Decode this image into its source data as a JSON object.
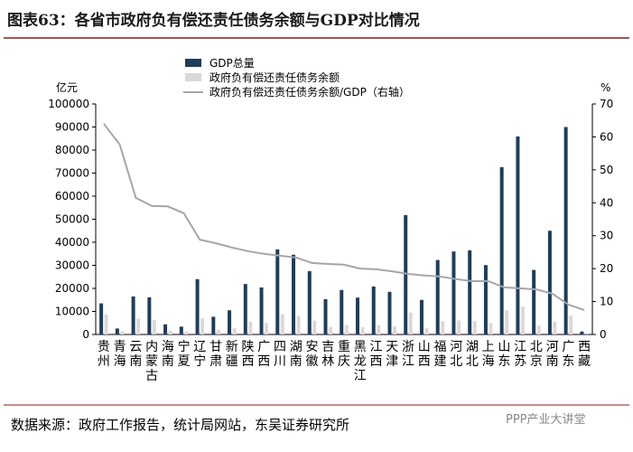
{
  "chart_data": {
    "type": "bar_line",
    "title": "图表63：各省市政府负有偿还责任债务余额与GDP对比情况",
    "y_label": "亿元",
    "y2_label": "%",
    "categories": [
      "贵州",
      "青海",
      "云南",
      "内蒙古",
      "海南",
      "宁夏",
      "辽宁",
      "甘肃",
      "新疆",
      "陕西",
      "广西",
      "四川",
      "湖南",
      "安徽",
      "吉林",
      "重庆",
      "黑龙江",
      "江西",
      "天津",
      "浙江",
      "山西",
      "福建",
      "河北",
      "湖北",
      "上海",
      "山东",
      "江苏",
      "北京",
      "河南",
      "广东",
      "西藏"
    ],
    "series": [
      {
        "name": "GDP总量",
        "color": "#1f3d5c",
        "kind": "bar",
        "values": [
          13500,
          2600,
          16500,
          16100,
          4400,
          3400,
          24000,
          7700,
          10500,
          21900,
          20400,
          36900,
          34600,
          27500,
          15300,
          19300,
          16000,
          20800,
          18500,
          51800,
          15000,
          32300,
          36000,
          36500,
          30100,
          72600,
          85900,
          28000,
          45000,
          90000,
          1300
        ]
      },
      {
        "name": "政府负有偿还责任债务余额",
        "color": "#d9d9d9",
        "kind": "bar",
        "values": [
          8600,
          1500,
          6900,
          6300,
          1700,
          1300,
          6900,
          2100,
          2800,
          5500,
          5000,
          8800,
          8100,
          6000,
          3300,
          4100,
          3200,
          4100,
          3600,
          9500,
          2700,
          5700,
          6100,
          5900,
          4900,
          10400,
          12000,
          3800,
          5600,
          8200,
          100
        ]
      },
      {
        "name": "政府负有偿还责任债务余额/GDP（右轴）",
        "color": "#a6a6a6",
        "kind": "line",
        "axis": "y2",
        "values": [
          64,
          57.7,
          41.5,
          39,
          38.9,
          36.8,
          28.8,
          27.7,
          26.4,
          25.3,
          24.5,
          23.9,
          23.4,
          21.7,
          21.4,
          21.2,
          20,
          19.8,
          19.2,
          18.4,
          17.9,
          17.6,
          16.8,
          16.2,
          16.2,
          14.3,
          14,
          13.7,
          12.4,
          9.1,
          7.4
        ]
      }
    ],
    "ylim": [
      0,
      100000
    ],
    "yticks": [
      0,
      10000,
      20000,
      30000,
      40000,
      50000,
      60000,
      70000,
      80000,
      90000,
      100000
    ],
    "y2lim": [
      0,
      70
    ],
    "y2ticks": [
      0,
      10,
      20,
      30,
      40,
      50,
      60,
      70
    ],
    "source": "数据来源：政府工作报告，统计局网站，东吴证券研究所",
    "watermark": "PPP产业大讲堂"
  }
}
